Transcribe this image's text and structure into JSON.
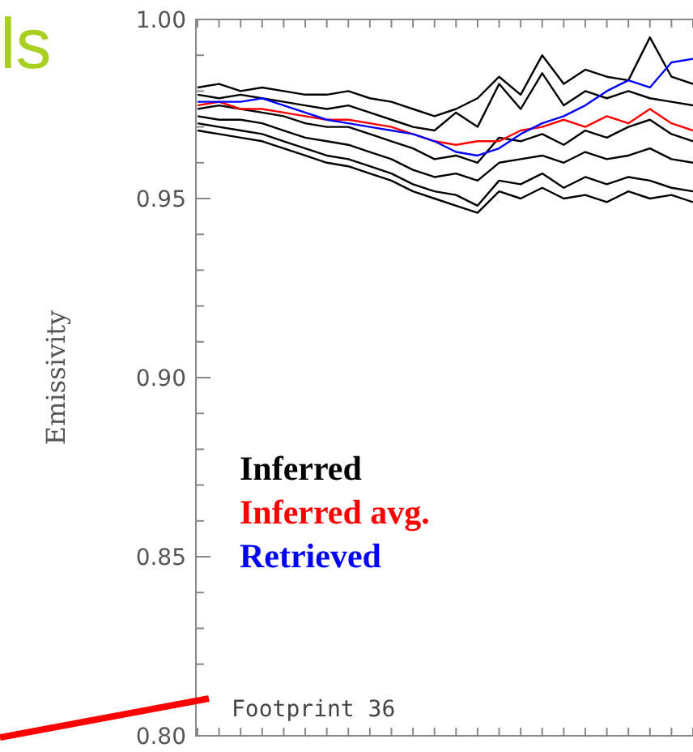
{
  "chart_data": {
    "type": "line",
    "ylabel": "Emissivity",
    "annotations": [
      "Footprint 36",
      "ls"
    ],
    "categories": [
      null,
      null,
      null,
      null,
      null,
      null,
      null,
      null,
      null,
      null,
      null,
      null,
      null,
      null,
      null,
      null,
      null,
      null,
      null,
      null,
      null,
      null,
      null,
      null
    ],
    "ylim": [
      0.8,
      1.0
    ],
    "yticks": [
      {
        "value": 0.8,
        "label": "0.80"
      },
      {
        "value": 0.81,
        "label": null
      },
      {
        "value": 0.82,
        "label": null
      },
      {
        "value": 0.83,
        "label": null
      },
      {
        "value": 0.84,
        "label": null
      },
      {
        "value": 0.85,
        "label": "0.85"
      },
      {
        "value": 0.86,
        "label": null
      },
      {
        "value": 0.87,
        "label": null
      },
      {
        "value": 0.88,
        "label": null
      },
      {
        "value": 0.89,
        "label": null
      },
      {
        "value": 0.9,
        "label": "0.90"
      },
      {
        "value": 0.91,
        "label": null
      },
      {
        "value": 0.92,
        "label": null
      },
      {
        "value": 0.93,
        "label": null
      },
      {
        "value": 0.94,
        "label": null
      },
      {
        "value": 0.95,
        "label": "0.95"
      },
      {
        "value": 0.96,
        "label": null
      },
      {
        "value": 0.97,
        "label": null
      },
      {
        "value": 0.98,
        "label": null
      },
      {
        "value": 0.99,
        "label": null
      },
      {
        "value": 1.0,
        "label": "1.00"
      }
    ],
    "grid": false,
    "legend": "left",
    "marker": "none",
    "line_style": "solid",
    "series": [
      {
        "name": "Inferred",
        "color": "#000000",
        "values": [
          0.981,
          0.982,
          0.98,
          0.981,
          0.98,
          0.979,
          0.979,
          0.98,
          0.978,
          0.977,
          0.975,
          0.973,
          0.975,
          0.978,
          0.984,
          0.979,
          0.99,
          0.982,
          0.986,
          0.984,
          0.983,
          0.995,
          0.984,
          0.982
        ]
      },
      {
        "color": "#000000",
        "values": [
          0.979,
          0.978,
          0.979,
          0.978,
          0.977,
          0.976,
          0.975,
          0.976,
          0.974,
          0.972,
          0.97,
          0.969,
          0.974,
          0.97,
          0.982,
          0.975,
          0.985,
          0.976,
          0.98,
          0.978,
          0.98,
          0.978,
          0.977,
          0.976
        ]
      },
      {
        "color": "#000000",
        "values": [
          0.975,
          0.976,
          0.975,
          0.974,
          0.973,
          0.971,
          0.97,
          0.97,
          0.968,
          0.966,
          0.964,
          0.961,
          0.962,
          0.96,
          0.967,
          0.966,
          0.968,
          0.965,
          0.969,
          0.967,
          0.97,
          0.972,
          0.968,
          0.966
        ]
      },
      {
        "color": "#000000",
        "values": [
          0.973,
          0.972,
          0.972,
          0.971,
          0.969,
          0.967,
          0.966,
          0.965,
          0.963,
          0.961,
          0.958,
          0.956,
          0.957,
          0.955,
          0.96,
          0.961,
          0.962,
          0.96,
          0.963,
          0.961,
          0.962,
          0.964,
          0.961,
          0.96
        ]
      },
      {
        "color": "#000000",
        "values": [
          0.971,
          0.97,
          0.969,
          0.968,
          0.966,
          0.964,
          0.962,
          0.961,
          0.959,
          0.957,
          0.954,
          0.952,
          0.951,
          0.948,
          0.955,
          0.954,
          0.957,
          0.953,
          0.956,
          0.954,
          0.956,
          0.955,
          0.953,
          0.952
        ]
      },
      {
        "color": "#000000",
        "values": [
          0.969,
          0.968,
          0.967,
          0.966,
          0.964,
          0.962,
          0.96,
          0.959,
          0.957,
          0.955,
          0.952,
          0.95,
          0.948,
          0.946,
          0.952,
          0.95,
          0.953,
          0.95,
          0.951,
          0.949,
          0.952,
          0.95,
          0.951,
          0.949
        ]
      },
      {
        "name": "Inferred avg.",
        "color": "#ff0000",
        "values": [
          0.976,
          0.977,
          0.975,
          0.975,
          0.974,
          0.973,
          0.972,
          0.972,
          0.971,
          0.97,
          0.968,
          0.966,
          0.965,
          0.966,
          0.966,
          0.969,
          0.97,
          0.972,
          0.97,
          0.973,
          0.971,
          0.975,
          0.971,
          0.969
        ]
      },
      {
        "name": "Retrieved",
        "color": "#0000ff",
        "values": [
          0.977,
          0.977,
          0.977,
          0.978,
          0.976,
          0.974,
          0.972,
          0.971,
          0.97,
          0.969,
          0.968,
          0.966,
          0.963,
          0.962,
          0.964,
          0.968,
          0.971,
          0.973,
          0.976,
          0.98,
          0.983,
          0.981,
          0.988,
          0.989
        ]
      }
    ]
  }
}
